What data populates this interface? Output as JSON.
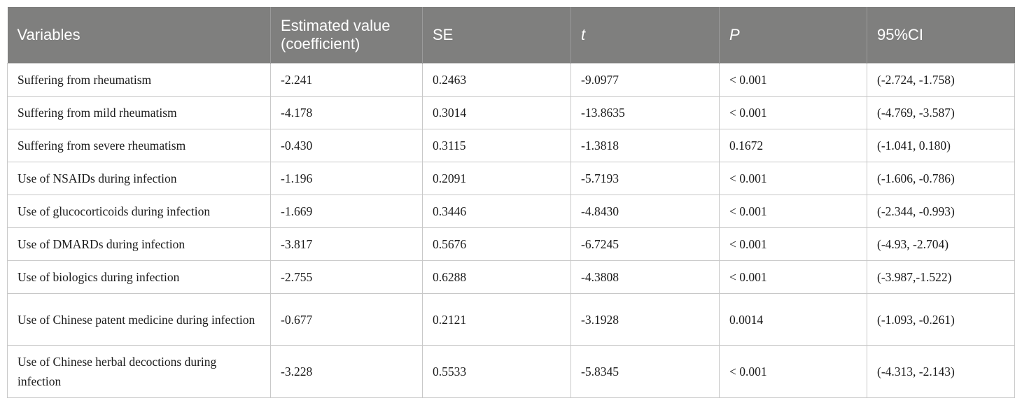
{
  "table": {
    "headers": [
      {
        "label": "Variables",
        "italic": false
      },
      {
        "label": "Estimated value (coefficient)",
        "italic": false
      },
      {
        "label": "SE",
        "italic": false
      },
      {
        "label": "t",
        "italic": true
      },
      {
        "label": "P",
        "italic": true
      },
      {
        "label": "95%CI",
        "italic": false
      }
    ],
    "rows": [
      {
        "variable": "Suffering from rheumatism",
        "estimate": "-2.241",
        "se": "0.2463",
        "t": "-9.0977",
        "p": "< 0.001",
        "ci": "(-2.724, -1.758)"
      },
      {
        "variable": "Suffering from mild rheumatism",
        "estimate": "-4.178",
        "se": "0.3014",
        "t": "-13.8635",
        "p": "< 0.001",
        "ci": "(-4.769, -3.587)"
      },
      {
        "variable": "Suffering from severe rheumatism",
        "estimate": "-0.430",
        "se": "0.3115",
        "t": "-1.3818",
        "p": "0.1672",
        "ci": "(-1.041, 0.180)"
      },
      {
        "variable": "Use of NSAIDs during infection",
        "estimate": "-1.196",
        "se": "0.2091",
        "t": "-5.7193",
        "p": "< 0.001",
        "ci": "(-1.606, -0.786)"
      },
      {
        "variable": "Use of glucocorticoids during infection",
        "estimate": "-1.669",
        "se": "0.3446",
        "t": "-4.8430",
        "p": "< 0.001",
        "ci": "(-2.344, -0.993)"
      },
      {
        "variable": "Use of DMARDs during infection",
        "estimate": "-3.817",
        "se": "0.5676",
        "t": "-6.7245",
        "p": "< 0.001",
        "ci": "(-4.93, -2.704)"
      },
      {
        "variable": "Use of biologics during infection",
        "estimate": "-2.755",
        "se": "0.6288",
        "t": "-4.3808",
        "p": "< 0.001",
        "ci": "(-3.987,-1.522)"
      },
      {
        "variable": "Use of Chinese patent medicine during infection",
        "estimate": "-0.677",
        "se": "0.2121",
        "t": "-3.1928",
        "p": "0.0014",
        "ci": "(-1.093, -0.261)"
      },
      {
        "variable": "Use of Chinese herbal decoctions during infection",
        "estimate": "-3.228",
        "se": "0.5533",
        "t": "-5.8345",
        "p": "< 0.001",
        "ci": "(-4.313, -2.143)"
      }
    ]
  }
}
